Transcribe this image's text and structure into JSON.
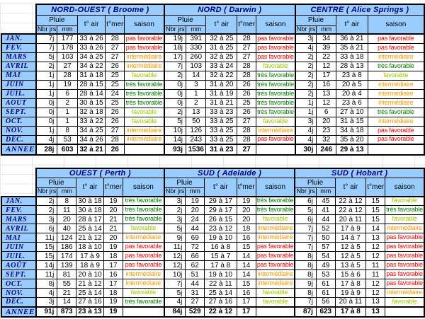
{
  "columns": {
    "pluie": "Pluie",
    "nbr_jrs": "Nbr jrs",
    "mm": "mm",
    "t_air": "t° air",
    "t_mer": "t°mer",
    "saison": "saison"
  },
  "months": [
    "JAN.",
    "FEV.",
    "MARS",
    "AVRIL",
    "MAI",
    "JUIN",
    "JUIL.",
    "AOÛT",
    "SEPT.",
    "OCT.",
    "NOV.",
    "DÉC."
  ],
  "year_label": "ANNEE",
  "colors": {
    "header_bg": "#99CCFF",
    "title_text": "#000080",
    "pas_favorable": "#FF0000",
    "intermediaire": "#FF9900",
    "favorable": "#99CC00",
    "tres_favorable": "#008000"
  },
  "season_colors": {
    "pas favorable": "#FF0000",
    "intermédiaire": "#FF9900",
    "favorable": "#99CC00",
    "très favorable": "#008000"
  },
  "sections": [
    {
      "name": "top",
      "regions": [
        {
          "title": "NORD-OUEST ( Broome )",
          "t_mer": true,
          "rows": [
            [
              "7j",
              "177",
              "33 à 26",
              "28",
              "pas favorable"
            ],
            [
              "7j",
              "178",
              "33 à 26",
              "27",
              "pas favorable"
            ],
            [
              "5j",
              "103",
              "34 à 25",
              "27",
              "intermédiaire"
            ],
            [
              "2j",
              "27",
              "34 à 22",
              "26",
              "intermédiaire"
            ],
            [
              "1j",
              "28",
              "31 à 18",
              "25",
              "favorable"
            ],
            [
              "1j",
              "19",
              "28 à 15",
              "25",
              "très favorable"
            ],
            [
              "1j",
              "6",
              "28 à 14",
              "24",
              "très favorable"
            ],
            [
              "0j",
              "2",
              "30 à 15",
              "25",
              "très favorable"
            ],
            [
              "0j",
              "1",
              "32 à 18",
              "26",
              "favorable"
            ],
            [
              "0j",
              "1",
              "33 à 22",
              "26",
              "favorable"
            ],
            [
              "1j",
              "8",
              "34 à 25",
              "27",
              "intermédiaire"
            ],
            [
              "4j",
              "53",
              "34 à 26",
              "28",
              "intermédiaire"
            ]
          ],
          "year": [
            "28j",
            "603",
            "32 à 21",
            "26"
          ]
        },
        {
          "title": "NORD ( Darwin )",
          "t_mer": true,
          "rows": [
            [
              "19j",
              "391",
              "32 à 25",
              "28",
              "pas favorable"
            ],
            [
              "18j",
              "330",
              "31 à 25",
              "27",
              "pas favorable"
            ],
            [
              "17j",
              "260",
              "32 à 25",
              "27",
              "pas favorable"
            ],
            [
              "7j",
              "103",
              "33 à 24",
              "28",
              "favorable"
            ],
            [
              "2j",
              "14",
              "32 à 22",
              "28",
              "très favorable"
            ],
            [
              "0j",
              "3",
              "31 à 20",
              "26",
              "très favorable"
            ],
            [
              "0j",
              "1",
              "31 à 19",
              "26",
              "très favorable"
            ],
            [
              "0j",
              "2",
              "31 à 21",
              "25",
              "très favorable"
            ],
            [
              "2j",
              "13",
              "33 à 23",
              "26",
              "très favorable"
            ],
            [
              "5j",
              "50",
              "33 à 25",
              "27",
              "favorable"
            ],
            [
              "10j",
              "126",
              "33 à 25",
              "28",
              "intermédiaire"
            ],
            [
              "14j",
              "243",
              "33 à 25",
              "28",
              "pas favorable"
            ]
          ],
          "year": [
            "93j",
            "1536",
            "31 à 23",
            "27"
          ]
        },
        {
          "title": "CENTRE ( Alice Springs )",
          "t_mer": false,
          "rows": [
            [
              "3j",
              "34",
              "36 à 21",
              "pas favorable"
            ],
            [
              "4j",
              "39",
              "35 à 21",
              "pas favorable"
            ],
            [
              "2j",
              "22",
              "33 à 18",
              "intermédiaire"
            ],
            [
              "2j",
              "12",
              "28 à 13",
              "très favorable"
            ],
            [
              "2j",
              "17",
              "23 à 8",
              "favorable"
            ],
            [
              "2j",
              "16",
              "20 à 5",
              "intermédiaire"
            ],
            [
              "2j",
              "13",
              "20 à 4",
              "intermédiaire"
            ],
            [
              "1j",
              "12",
              "23 à 6",
              "intermédiaire"
            ],
            [
              "1j",
              "6",
              "27 à 10",
              "très favorable"
            ],
            [
              "3j",
              "20",
              "31 à 15",
              "intermédiaire"
            ],
            [
              "4j",
              "23",
              "34 à 18",
              "pas favorable"
            ],
            [
              "4j",
              "32",
              "35 à 20",
              "pas favorable"
            ]
          ],
          "year": [
            "30j",
            "246",
            "29 à 13"
          ]
        }
      ]
    },
    {
      "name": "bottom",
      "regions": [
        {
          "title": "OUEST ( Perth )",
          "t_mer": true,
          "rows": [
            [
              "2j",
              "8",
              "30 à 18",
              "19",
              "très favorable"
            ],
            [
              "2j",
              "11",
              "30 à 18",
              "20",
              "très favorable"
            ],
            [
              "3j",
              "20",
              "28 à 17",
              "21",
              "très favorable"
            ],
            [
              "6j",
              "40",
              "25 à 14",
              "21",
              "favorable"
            ],
            [
              "11j",
              "124",
              "21 à 12",
              "20",
              "intermédiaire"
            ],
            [
              "15j",
              "186",
              "18 à 10",
              "19",
              "pas favorable"
            ],
            [
              "15j",
              "174",
              "17 à 9",
              "18",
              "pas favorable"
            ],
            [
              "14j",
              "139",
              "18 à 9",
              "17",
              "pas favorable"
            ],
            [
              "11j",
              "81",
              "20 à 10",
              "16",
              "intermédiaire"
            ],
            [
              "8j",
              "55",
              "21 à 12",
              "17",
              "intermédiaire"
            ],
            [
              "4j",
              "21",
              "25 à 14",
              "18",
              "favorable"
            ],
            [
              "3j",
              "14",
              "27 à 16",
              "19",
              "très favorable"
            ]
          ],
          "year": [
            "91j",
            "873",
            "23 à 13",
            "19"
          ]
        },
        {
          "title": "SUD ( Adelaide )",
          "t_mer": true,
          "rows": [
            [
              "3j",
              "19",
              "29 à 17",
              "19",
              "très favorable"
            ],
            [
              "2j",
              "20",
              "29 à 17",
              "20",
              "très favorable"
            ],
            [
              "3j",
              "24",
              "26 à 15",
              "20",
              "favorable"
            ],
            [
              "5j",
              "44",
              "23 à 12",
              "18",
              "intermédiaire"
            ],
            [
              "9j",
              "69",
              "19 à 10",
              "16",
              "intermédiaire"
            ],
            [
              "11j",
              "72",
              "16 à 8",
              "15",
              "pas favorable"
            ],
            [
              "12j",
              "66",
              "15 à 7",
              "14",
              "pas favorable"
            ],
            [
              "12j",
              "62",
              "17 à 8",
              "14",
              "pas favorable"
            ],
            [
              "10j",
              "51",
              "19 à 10",
              "14",
              "intermédiaire"
            ],
            [
              "7j",
              "44",
              "22 à 11",
              "15",
              "intermédiaire"
            ],
            [
              "5j",
              "31",
              "25 à 14",
              "16",
              "favorable"
            ],
            [
              "4j",
              "27",
              "27 à 16",
              "17",
              "favorable"
            ]
          ],
          "year": [
            "84j",
            "529",
            "22 à 12",
            "17"
          ]
        },
        {
          "title": "SUD ( Hobart )",
          "t_mer": true,
          "rows": [
            [
              "6j",
              "45",
              "22 à 12",
              "15",
              "favorable"
            ],
            [
              "5j",
              "41",
              "22 à 12",
              "15",
              "très favorable"
            ],
            [
              "6j",
              "44",
              "20 à 11",
              "15",
              "favorable"
            ],
            [
              "7j",
              "52",
              "17 à 9",
              "14",
              "intermédiaire"
            ],
            [
              "7j",
              "50",
              "14 à 7",
              "13",
              "pas favorable"
            ],
            [
              "7j",
              "57",
              "12 à 5",
              "12",
              "pas favorable"
            ],
            [
              "8j",
              "54",
              "12 à 5",
              "12",
              "pas favorable"
            ],
            [
              "8j",
              "49",
              "13 à 5",
              "11",
              "pas favorable"
            ],
            [
              "8j",
              "53",
              "15 à 6",
              "11",
              "pas favorable"
            ],
            [
              "9j",
              "61",
              "17 à 8",
              "12",
              "pas favorable"
            ],
            [
              "8j",
              "61",
              "19 à 9",
              "12",
              "intermédiaire"
            ],
            [
              "7j",
              "56",
              "20 à 11",
              "13",
              "favorable"
            ]
          ],
          "year": [
            "87j",
            "623",
            "17 à 8",
            "13"
          ]
        }
      ]
    }
  ]
}
